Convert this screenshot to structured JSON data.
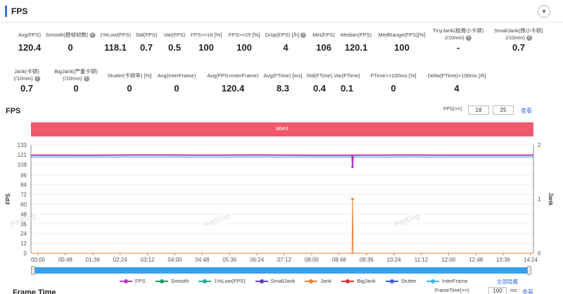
{
  "section": {
    "title": "FPS",
    "collapse_icon": "▼"
  },
  "metrics_row1": [
    {
      "label": "Avg(FPS)",
      "value": "120.4",
      "lines": 1
    },
    {
      "label": "Smooth(稳帧帧数)",
      "value": "0",
      "lines": 1,
      "help": true
    },
    {
      "label": "1%Low(FPS)",
      "value": "118.1",
      "lines": 1
    },
    {
      "label": "Std(FPS)",
      "value": "0.7",
      "lines": 1
    },
    {
      "label": "Var(FPS)",
      "value": "0.5",
      "lines": 1
    },
    {
      "label": "FPS>=18 [%]",
      "value": "100",
      "lines": 1
    },
    {
      "label": "FPS>=25 [%]",
      "value": "100",
      "lines": 1
    },
    {
      "label": "Drop(FPS) [/h]",
      "value": "4",
      "lines": 1,
      "help": true
    },
    {
      "label": "Min(FPS)",
      "value": "106",
      "lines": 1
    },
    {
      "label": "Median(FPS)",
      "value": "120.1",
      "lines": 1
    },
    {
      "label": "MedRange(FPS)[%]",
      "value": "100",
      "lines": 1
    },
    {
      "label": "TinyJank(极微小卡顿)",
      "label2": "(/10min)",
      "value": "-",
      "lines": 2,
      "help": true
    },
    {
      "label": "SmallJank(微小卡顿)",
      "label2": "(/10min)",
      "value": "0.7",
      "lines": 2,
      "help": true
    }
  ],
  "metrics_row2": [
    {
      "label": "Jank(卡顿)",
      "label2": "(/10min)",
      "value": "0.7",
      "lines": 2,
      "help": true
    },
    {
      "label": "BigJank(严重卡顿)",
      "label2": "(/10min)",
      "value": "0",
      "lines": 2,
      "help": true
    },
    {
      "label": "Stutter(卡顿率) [%]",
      "value": "0",
      "lines": 1
    },
    {
      "label": "Avg(InterFrame)",
      "value": "0",
      "lines": 1
    },
    {
      "label": "Avg(FPS+InterFrame)",
      "value": "120.4",
      "lines": 1
    },
    {
      "label": "Avg(FTime) [ms]",
      "value": "8.3",
      "lines": 1
    },
    {
      "label": "Std(FTime)",
      "value": "0.4",
      "lines": 1
    },
    {
      "label": "Var(FTime)",
      "value": "0.1",
      "lines": 1
    },
    {
      "label": "FTime>=100ms [%]",
      "value": "0",
      "lines": 1
    },
    {
      "label": "Delta(FTime)>100ms [/h]",
      "value": "4",
      "lines": 1
    }
  ],
  "chart_header": {
    "title": "FPS",
    "filter_label": "FPS(>=)",
    "filter_values": [
      "18",
      "25"
    ],
    "query_label": "查看"
  },
  "label_band": "label1",
  "watermark": "PerfDog",
  "chart_data": {
    "type": "line",
    "x_ticks": [
      "00:00",
      "00:48",
      "01:36",
      "02:24",
      "03:12",
      "04:00",
      "04:48",
      "05:36",
      "06:24",
      "07:12",
      "08:00",
      "08:48",
      "09:36",
      "10:24",
      "11:12",
      "12:00",
      "12:48",
      "13:36",
      "14:24"
    ],
    "y_left": {
      "label": "FPS",
      "ticks": [
        0,
        12,
        24,
        36,
        48,
        60,
        72,
        84,
        96,
        109,
        121,
        133
      ],
      "range": [
        0,
        133
      ]
    },
    "y_right": {
      "label": "Jank",
      "ticks": [
        0,
        1,
        2
      ],
      "range": [
        0,
        2
      ]
    },
    "x_range_seconds": [
      0,
      900
    ],
    "series": [
      {
        "name": "FPS",
        "color": "#b03cc8",
        "points": [
          [
            0,
            120.4
          ],
          [
            100,
            120.2
          ],
          [
            200,
            120.6
          ],
          [
            300,
            120.4
          ],
          [
            400,
            120.5
          ],
          [
            500,
            120.3
          ],
          [
            575,
            120.3
          ],
          [
            576,
            106
          ],
          [
            577,
            120.4
          ],
          [
            680,
            120.5
          ],
          [
            780,
            120.4
          ],
          [
            900,
            120.4
          ]
        ]
      },
      {
        "name": "Smooth",
        "color": "#1fa05a",
        "points": [
          [
            0,
            0
          ],
          [
            900,
            0
          ]
        ]
      },
      {
        "name": "1%Low(FPS)",
        "color": "#2aa89a",
        "points": [
          [
            0,
            118.1
          ],
          [
            900,
            118.1
          ]
        ]
      },
      {
        "name": "SmallJank",
        "color": "#6a3fc2",
        "points": [
          [
            0,
            0
          ],
          [
            900,
            0
          ]
        ]
      },
      {
        "name": "Jank",
        "color": "#f08030",
        "points": [
          [
            0,
            0
          ],
          [
            575,
            0
          ],
          [
            576,
            1
          ],
          [
            577,
            0
          ],
          [
            900,
            0
          ]
        ],
        "axis": "right"
      },
      {
        "name": "BigJank",
        "color": "#e03030",
        "points": [
          [
            0,
            0
          ],
          [
            900,
            0
          ]
        ],
        "axis": "right"
      },
      {
        "name": "Stutter",
        "color": "#3b5ed8",
        "points": [
          [
            0,
            0
          ],
          [
            900,
            0
          ]
        ]
      },
      {
        "name": "InterFrame",
        "color": "#38b8e8",
        "points": [
          [
            0,
            0
          ],
          [
            900,
            0
          ]
        ]
      }
    ],
    "grid": true
  },
  "legend_select_all": "全部隐藏",
  "next_section": {
    "title": "Frame Time",
    "filter_label": "FrameTime(>=)",
    "filter_value": "100",
    "unit": "ms",
    "query_label": "查看"
  }
}
